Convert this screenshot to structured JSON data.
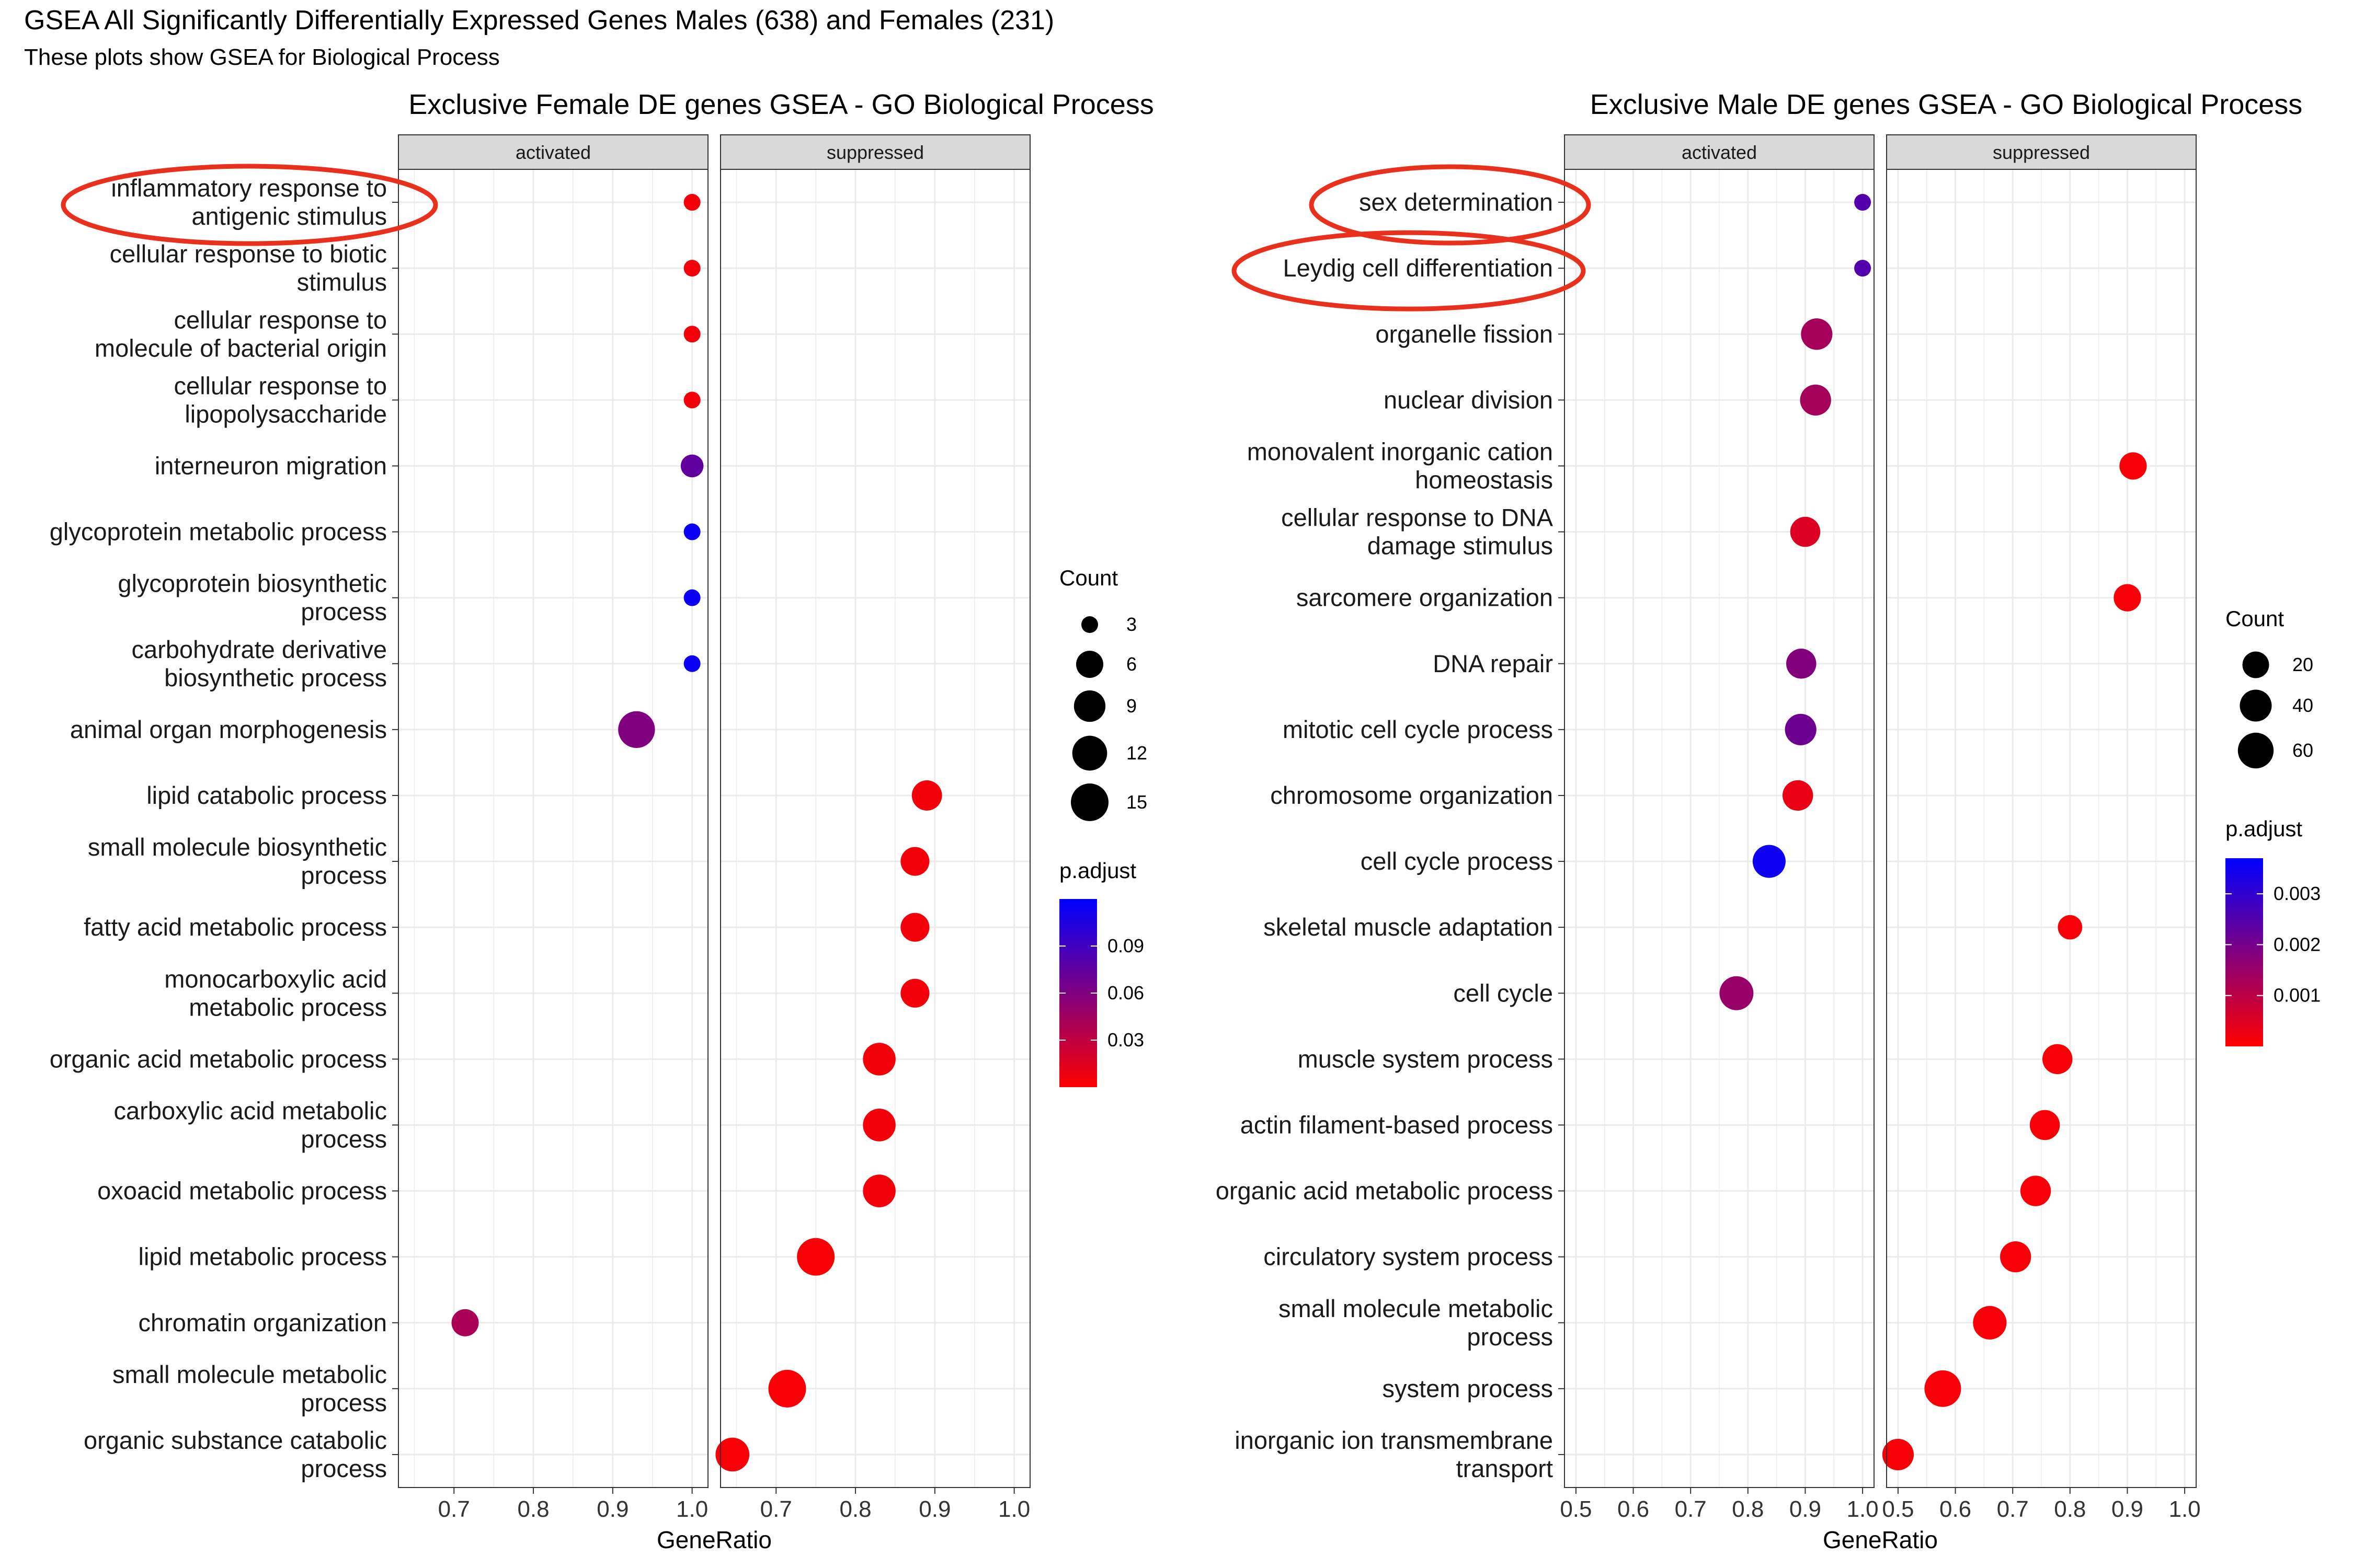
{
  "title": "GSEA All Significantly Differentially Expressed Genes Males (638) and Females (231)",
  "subtitle": "These plots show GSEA for Biological Process",
  "annotation_color": "#e8301c",
  "chart_data": [
    {
      "type": "scatter",
      "title": "Exclusive Female DE genes GSEA - GO Biological Process",
      "xlabel": "GeneRatio",
      "facets": [
        "activated",
        "suppressed"
      ],
      "facet_xlim": {
        "activated": [
          0.63,
          1.02
        ],
        "suppressed": [
          0.63,
          1.02
        ]
      },
      "facet_ticks": {
        "activated": [
          0.7,
          0.8,
          0.9,
          1.0
        ],
        "suppressed": [
          0.7,
          0.8,
          0.9,
          1.0
        ]
      },
      "facet_tick_labels": {
        "activated": [
          "0.7",
          "0.8",
          "0.9",
          "1.0"
        ],
        "suppressed": [
          "0.7",
          "0.8",
          "0.9",
          "1.0"
        ]
      },
      "categories": [
        "inflammatory response to\nantigenic stimulus",
        "cellular response to biotic\nstimulus",
        "cellular response to\nmolecule of bacterial origin",
        "cellular response to\nlipopolysaccharide",
        "interneuron migration",
        "glycoprotein metabolic process",
        "glycoprotein biosynthetic\nprocess",
        "carbohydrate derivative\nbiosynthetic process",
        "animal organ morphogenesis",
        "lipid catabolic process",
        "small molecule biosynthetic\nprocess",
        "fatty acid metabolic process",
        "monocarboxylic acid\nmetabolic process",
        "organic acid metabolic process",
        "carboxylic acid metabolic\nprocess",
        "oxoacid metabolic process",
        "lipid metabolic process",
        "chromatin organization",
        "small molecule metabolic\nprocess",
        "organic substance catabolic\nprocess"
      ],
      "points": [
        {
          "facet": "activated",
          "category": 0,
          "x": 1.0,
          "count": 3,
          "p_adjust": 0.005
        },
        {
          "facet": "activated",
          "category": 1,
          "x": 1.0,
          "count": 3,
          "p_adjust": 0.005
        },
        {
          "facet": "activated",
          "category": 2,
          "x": 1.0,
          "count": 3,
          "p_adjust": 0.005
        },
        {
          "facet": "activated",
          "category": 3,
          "x": 1.0,
          "count": 3,
          "p_adjust": 0.005
        },
        {
          "facet": "activated",
          "category": 4,
          "x": 1.0,
          "count": 4,
          "p_adjust": 0.075
        },
        {
          "facet": "activated",
          "category": 5,
          "x": 1.0,
          "count": 3,
          "p_adjust": 0.115
        },
        {
          "facet": "activated",
          "category": 6,
          "x": 1.0,
          "count": 3,
          "p_adjust": 0.115
        },
        {
          "facet": "activated",
          "category": 7,
          "x": 1.0,
          "count": 3,
          "p_adjust": 0.115
        },
        {
          "facet": "activated",
          "category": 8,
          "x": 0.93,
          "count": 14,
          "p_adjust": 0.06
        },
        {
          "facet": "suppressed",
          "category": 9,
          "x": 0.89,
          "count": 8,
          "p_adjust": 0.005
        },
        {
          "facet": "suppressed",
          "category": 10,
          "x": 0.875,
          "count": 7,
          "p_adjust": 0.005
        },
        {
          "facet": "suppressed",
          "category": 11,
          "x": 0.875,
          "count": 7,
          "p_adjust": 0.005
        },
        {
          "facet": "suppressed",
          "category": 12,
          "x": 0.875,
          "count": 7,
          "p_adjust": 0.005
        },
        {
          "facet": "suppressed",
          "category": 13,
          "x": 0.83,
          "count": 10,
          "p_adjust": 0.005
        },
        {
          "facet": "suppressed",
          "category": 14,
          "x": 0.83,
          "count": 10,
          "p_adjust": 0.005
        },
        {
          "facet": "suppressed",
          "category": 15,
          "x": 0.83,
          "count": 10,
          "p_adjust": 0.005
        },
        {
          "facet": "suppressed",
          "category": 16,
          "x": 0.75,
          "count": 15,
          "p_adjust": 0.003
        },
        {
          "facet": "activated",
          "category": 17,
          "x": 0.714,
          "count": 6,
          "p_adjust": 0.04
        },
        {
          "facet": "suppressed",
          "category": 18,
          "x": 0.714,
          "count": 15,
          "p_adjust": 0.003
        },
        {
          "facet": "suppressed",
          "category": 19,
          "x": 0.645,
          "count": 11,
          "p_adjust": 0.003
        }
      ],
      "circled_categories": [
        0
      ],
      "legend_count": {
        "title": "Count",
        "values": [
          3,
          6,
          9,
          12,
          15
        ],
        "labels": [
          "3",
          "6",
          "9",
          "12",
          "15"
        ]
      },
      "legend_color": {
        "title": "p.adjust",
        "range": [
          0.0,
          0.12
        ],
        "ticks": [
          0.09,
          0.06,
          0.03
        ],
        "tick_labels": [
          "0.09",
          "0.06",
          "0.03"
        ],
        "low_color": "#ff0000",
        "high_color": "#0000ff"
      }
    },
    {
      "type": "scatter",
      "title": "Exclusive Male DE genes GSEA - GO Biological Process",
      "xlabel": "GeneRatio",
      "facets": [
        "activated",
        "suppressed"
      ],
      "facet_xlim": {
        "activated": [
          0.48,
          1.02
        ],
        "suppressed": [
          0.48,
          1.02
        ]
      },
      "facet_ticks": {
        "activated": [
          0.5,
          0.6,
          0.7,
          0.8,
          0.9,
          1.0
        ],
        "suppressed": [
          0.5,
          0.6,
          0.7,
          0.8,
          0.9,
          1.0
        ]
      },
      "facet_tick_labels": {
        "activated": [
          "0.5",
          "0.6",
          "0.7",
          "0.8",
          "0.9",
          "1.0"
        ],
        "suppressed": [
          "0.5",
          "0.6",
          "0.7",
          "0.8",
          "0.9",
          "1.0"
        ]
      },
      "categories": [
        "sex determination",
        "Leydig cell differentiation",
        "organelle fission",
        "nuclear division",
        "monovalent inorganic cation\nhomeostasis",
        "cellular response to DNA\ndamage stimulus",
        "sarcomere organization",
        "DNA repair",
        "mitotic cell cycle process",
        "chromosome organization",
        "cell cycle process",
        "skeletal muscle adaptation",
        "cell cycle",
        "muscle system process",
        "actin filament-based process",
        "organic acid metabolic process",
        "circulatory system process",
        "small molecule metabolic\nprocess",
        "system process",
        "inorganic ion transmembrane\ntransport"
      ],
      "points": [
        {
          "facet": "activated",
          "category": 0,
          "x": 1.0,
          "count": 5,
          "p_adjust": 0.0025
        },
        {
          "facet": "activated",
          "category": 1,
          "x": 1.0,
          "count": 5,
          "p_adjust": 0.0025
        },
        {
          "facet": "activated",
          "category": 2,
          "x": 0.92,
          "count": 38,
          "p_adjust": 0.0013
        },
        {
          "facet": "activated",
          "category": 3,
          "x": 0.918,
          "count": 36,
          "p_adjust": 0.0013
        },
        {
          "facet": "suppressed",
          "category": 4,
          "x": 0.91,
          "count": 22,
          "p_adjust": 0.0001
        },
        {
          "facet": "activated",
          "category": 5,
          "x": 0.9,
          "count": 32,
          "p_adjust": 0.0005
        },
        {
          "facet": "suppressed",
          "category": 6,
          "x": 0.9,
          "count": 22,
          "p_adjust": 0.0001
        },
        {
          "facet": "activated",
          "category": 7,
          "x": 0.893,
          "count": 32,
          "p_adjust": 0.0018
        },
        {
          "facet": "activated",
          "category": 8,
          "x": 0.892,
          "count": 38,
          "p_adjust": 0.0021
        },
        {
          "facet": "activated",
          "category": 9,
          "x": 0.887,
          "count": 34,
          "p_adjust": 0.0003
        },
        {
          "facet": "activated",
          "category": 10,
          "x": 0.837,
          "count": 45,
          "p_adjust": 0.0035
        },
        {
          "facet": "suppressed",
          "category": 11,
          "x": 0.8,
          "count": 14,
          "p_adjust": 0.0001
        },
        {
          "facet": "activated",
          "category": 12,
          "x": 0.78,
          "count": 50,
          "p_adjust": 0.0015
        },
        {
          "facet": "suppressed",
          "category": 13,
          "x": 0.778,
          "count": 32,
          "p_adjust": 0.0001
        },
        {
          "facet": "suppressed",
          "category": 14,
          "x": 0.756,
          "count": 32,
          "p_adjust": 0.0001
        },
        {
          "facet": "suppressed",
          "category": 15,
          "x": 0.74,
          "count": 34,
          "p_adjust": 0.0001
        },
        {
          "facet": "suppressed",
          "category": 16,
          "x": 0.705,
          "count": 36,
          "p_adjust": 0.0001
        },
        {
          "facet": "suppressed",
          "category": 17,
          "x": 0.66,
          "count": 48,
          "p_adjust": 0.0001
        },
        {
          "facet": "suppressed",
          "category": 18,
          "x": 0.578,
          "count": 65,
          "p_adjust": 0.0001
        },
        {
          "facet": "suppressed",
          "category": 19,
          "x": 0.5,
          "count": 38,
          "p_adjust": 0.0001
        }
      ],
      "circled_categories": [
        0,
        1
      ],
      "legend_count": {
        "title": "Count",
        "values": [
          20,
          40,
          60
        ],
        "labels": [
          "20",
          "40",
          "60"
        ]
      },
      "legend_color": {
        "title": "p.adjust",
        "range": [
          0.0,
          0.0037
        ],
        "ticks": [
          0.003,
          0.002,
          0.001
        ],
        "tick_labels": [
          "0.003",
          "0.002",
          "0.001"
        ],
        "low_color": "#ff0000",
        "high_color": "#0000ff"
      }
    }
  ]
}
